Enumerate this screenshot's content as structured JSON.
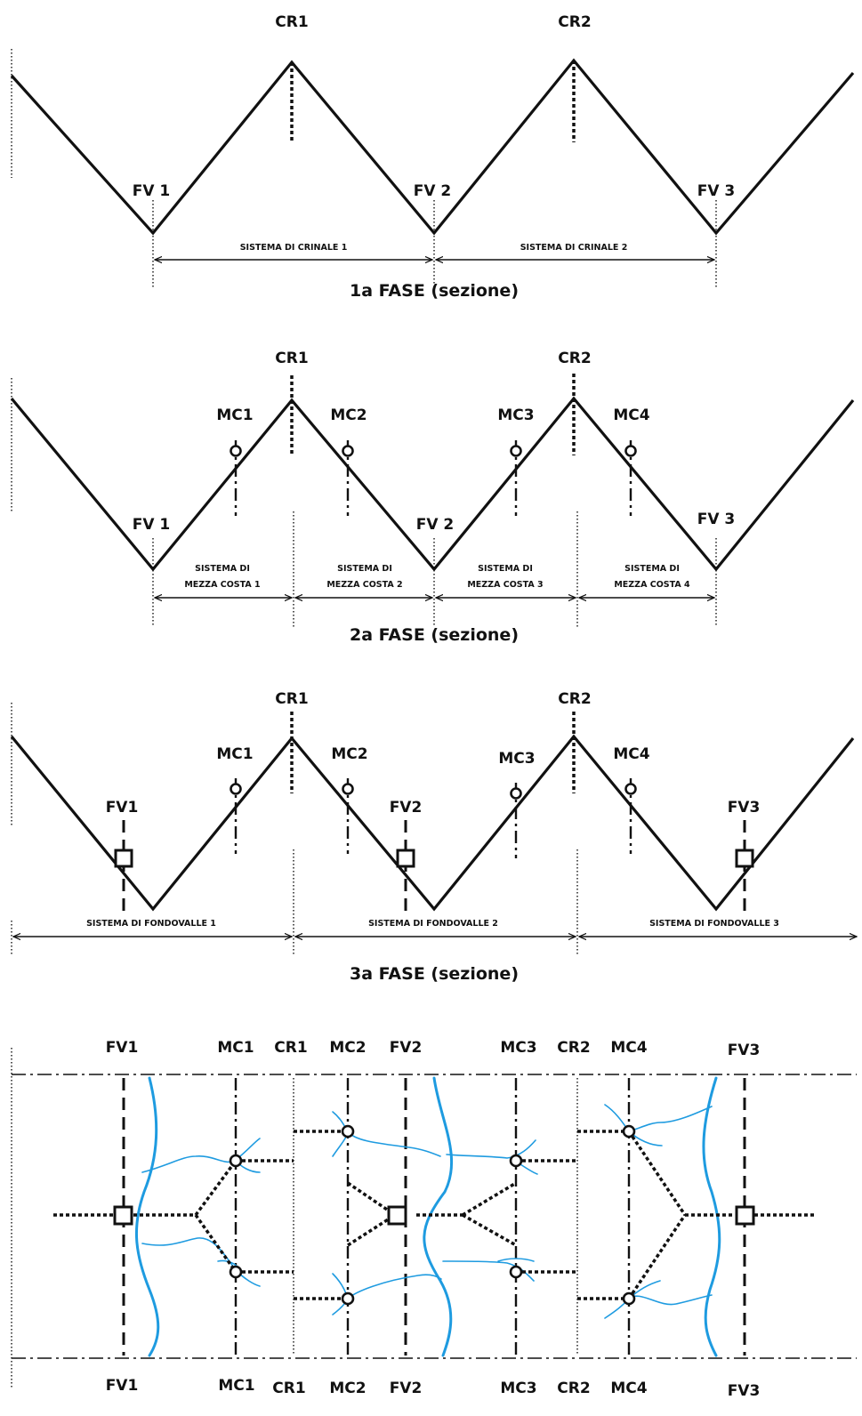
{
  "phase1": {
    "title": "1a FASE (sezione)",
    "ridges": [
      "CR1",
      "CR2"
    ],
    "valleys": [
      "FV 1",
      "FV 2",
      "FV 3"
    ],
    "systems": [
      "SISTEMA DI CRINALE 1",
      "SISTEMA DI CRINALE 2"
    ]
  },
  "phase2": {
    "title": "2a FASE (sezione)",
    "ridges": [
      "CR1",
      "CR2"
    ],
    "midslopes": [
      "MC1",
      "MC2",
      "MC3",
      "MC4"
    ],
    "valleys": [
      "FV 1",
      "FV 2",
      "FV 3"
    ],
    "systems": [
      [
        "SISTEMA DI",
        "MEZZA COSTA 1"
      ],
      [
        "SISTEMA DI",
        "MEZZA COSTA 2"
      ],
      [
        "SISTEMA DI",
        "MEZZA COSTA 3"
      ],
      [
        "SISTEMA DI",
        "MEZZA COSTA 4"
      ]
    ]
  },
  "phase3": {
    "title": "3a FASE (sezione)",
    "ridges": [
      "CR1",
      "CR2"
    ],
    "midslopes": [
      "MC1",
      "MC2",
      "MC3",
      "MC4"
    ],
    "valleys": [
      "FV1",
      "FV2",
      "FV3"
    ],
    "systems": [
      "SISTEMA DI FONDOVALLE 1",
      "SISTEMA DI FONDOVALLE 2",
      "SISTEMA DI FONDOVALLE 3"
    ]
  },
  "plan": {
    "top_labels": [
      "FV1",
      "MC1",
      "CR1",
      "MC2",
      "FV2",
      "MC3",
      "CR2",
      "MC4",
      "FV3"
    ],
    "bottom_labels": [
      "FV1",
      "MC1",
      "CR1",
      "MC2",
      "FV2",
      "MC3",
      "CR2",
      "MC4",
      "FV3"
    ]
  },
  "colors": {
    "line": "#111111",
    "river": "#1e9be0",
    "background": "#ffffff"
  }
}
